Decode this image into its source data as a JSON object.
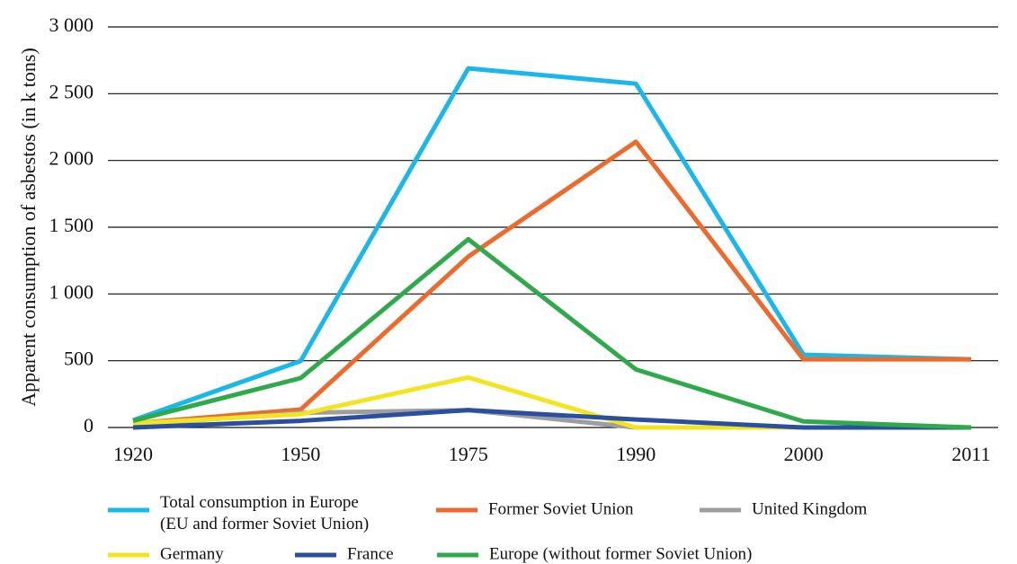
{
  "chart_data": {
    "type": "line",
    "y_label": "Apparent consumption of asbestos (in k tons)",
    "categories": [
      "1920",
      "1950",
      "1975",
      "1990",
      "2000",
      "2011"
    ],
    "series": [
      {
        "name": "Total consumption in Europe\n(EU and former Soviet Union)",
        "color": "#1ab7ea",
        "values": [
          54,
          498,
          2690,
          2575,
          545,
          510
        ]
      },
      {
        "name": "Former Soviet Union",
        "color": "#ee6a2c",
        "values": [
          30,
          135,
          1280,
          2140,
          510,
          510
        ]
      },
      {
        "name": "United Kingdom",
        "color": "#9e9e9e",
        "values": [
          20,
          110,
          130,
          0,
          0,
          0
        ]
      },
      {
        "name": "Germany",
        "color": "#f2e520",
        "values": [
          30,
          100,
          375,
          0,
          0,
          0
        ]
      },
      {
        "name": "France",
        "color": "#2a4fa0",
        "values": [
          0,
          50,
          130,
          60,
          0,
          0
        ]
      },
      {
        "name": "Europe (without former Soviet Union)",
        "color": "#2eaa4a",
        "values": [
          50,
          370,
          1410,
          435,
          45,
          0
        ]
      }
    ],
    "ylim": [
      0,
      3000
    ],
    "yticks": [
      0,
      500,
      {
        "value": 1000,
        "label": "1 000"
      },
      {
        "value": 1500,
        "label": "1 500"
      },
      {
        "value": 2000,
        "label": "2 000"
      },
      {
        "value": 2500,
        "label": "2 500"
      },
      {
        "value": 3000,
        "label": "3 000"
      }
    ],
    "grid": true
  }
}
